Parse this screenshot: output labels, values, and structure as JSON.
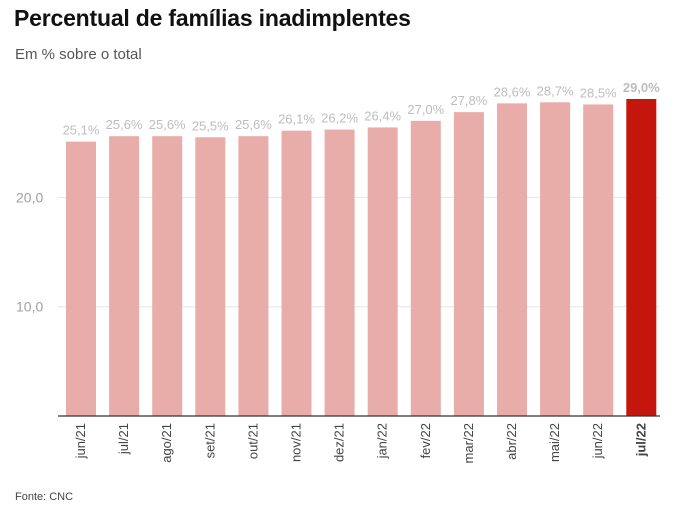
{
  "title": "Percentual de famílias inadimplentes",
  "subtitle": "Em % sobre o total",
  "source": "Fonte: CNC",
  "colors": {
    "bar": "#e8ada9",
    "highlight": "#c4160d",
    "grid": "#e6e6e6"
  },
  "chart_data": {
    "type": "bar",
    "categories": [
      "jun/21",
      "jul/21",
      "ago/21",
      "set/21",
      "out/21",
      "nov/21",
      "dez/21",
      "jan/22",
      "fev/22",
      "mar/22",
      "abr/22",
      "mai/22",
      "jun/22",
      "jul/22"
    ],
    "values": [
      25.1,
      25.6,
      25.6,
      25.5,
      25.6,
      26.1,
      26.2,
      26.4,
      27.0,
      27.8,
      28.6,
      28.7,
      28.5,
      29.0
    ],
    "value_labels": [
      "25,1%",
      "25,6%",
      "25,6%",
      "25,5%",
      "25,6%",
      "26,1%",
      "26,2%",
      "26,4%",
      "27,0%",
      "27,8%",
      "28,6%",
      "28,7%",
      "28,5%",
      "29,0%"
    ],
    "ytick_values": [
      10,
      20
    ],
    "ytick_labels": [
      "10,0",
      "20,0"
    ],
    "ylim": [
      0,
      29.0
    ],
    "highlight_index": 13,
    "grid": true
  }
}
